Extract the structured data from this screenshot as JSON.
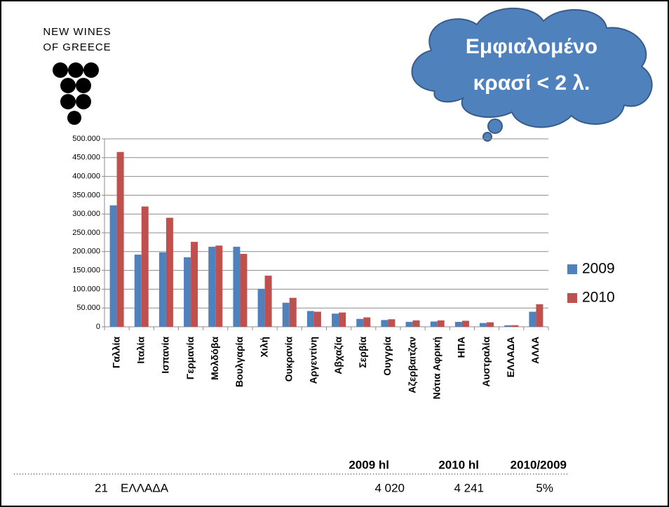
{
  "logo": {
    "line1": "NEW WINES",
    "line2": "OF GREECE"
  },
  "callout": {
    "line1": "Εμφιαλομένο",
    "line2": "κρασί < 2 λ."
  },
  "table": {
    "headers": [
      "2009 hl",
      "2010 hl",
      "2010/2009"
    ],
    "row": [
      "21",
      "ΕΛΛΑΔΑ",
      "4 020",
      "4 241",
      "5%"
    ]
  },
  "chart_data": {
    "type": "bar",
    "categories": [
      "Γαλλία",
      "Ιταλία",
      "Ισπανία",
      "Γερμανία",
      "Μολδόβα",
      "Βουλγαρία",
      "Χιλή",
      "Ουκρανία",
      "Αργεντίνη",
      "Αβχαζία",
      "Σερβία",
      "Ουγγρία",
      "Αζερβαιτζαν",
      "Νότια Αφρική",
      "ΗΠΑ",
      "Αυστραλία",
      "ΕΛΛΑΔΑ",
      "ΑΛΛΑ"
    ],
    "series": [
      {
        "name": "2009",
        "color": "#4f81bd",
        "values": [
          323000,
          192000,
          198000,
          185000,
          213000,
          213000,
          101000,
          64000,
          42000,
          35000,
          21000,
          18000,
          13000,
          14000,
          13000,
          10000,
          4020,
          40000
        ]
      },
      {
        "name": "2010",
        "color": "#c0504d",
        "values": [
          465000,
          320000,
          290000,
          226000,
          216000,
          194000,
          136000,
          77000,
          40000,
          38000,
          25000,
          20000,
          17000,
          17000,
          16000,
          12000,
          4241,
          60000
        ]
      }
    ],
    "ylim": [
      0,
      500000
    ],
    "yticks": [
      0,
      {
        "value": 50000,
        "label": "50.000"
      },
      {
        "value": 100000,
        "label": "100.000"
      },
      {
        "value": 150000,
        "label": "150.000"
      },
      {
        "value": 200000,
        "label": "200.000"
      },
      {
        "value": 250000,
        "label": "250.000"
      },
      {
        "value": 300000,
        "label": "300.000"
      },
      {
        "value": 350000,
        "label": "350.000"
      },
      {
        "value": 400000,
        "label": "400.000"
      },
      {
        "value": 450000,
        "label": "450.000"
      },
      {
        "value": 500000,
        "label": "500.000"
      }
    ],
    "grid": true,
    "legend": "right"
  }
}
